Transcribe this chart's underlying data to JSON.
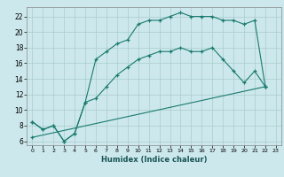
{
  "xlabel": "Humidex (Indice chaleur)",
  "bg_color": "#cce8ec",
  "grid_color": "#aacccc",
  "line_color": "#1a7a6e",
  "xlim": [
    -0.5,
    23.5
  ],
  "ylim": [
    5.5,
    23.2
  ],
  "xtick_labels": [
    "0",
    "1",
    "2",
    "3",
    "4",
    "5",
    "6",
    "7",
    "8",
    "9",
    "10",
    "11",
    "12",
    "13",
    "14",
    "15",
    "16",
    "17",
    "18",
    "19",
    "20",
    "21",
    "22",
    "23"
  ],
  "xticks": [
    0,
    1,
    2,
    3,
    4,
    5,
    6,
    7,
    8,
    9,
    10,
    11,
    12,
    13,
    14,
    15,
    16,
    17,
    18,
    19,
    20,
    21,
    22,
    23
  ],
  "yticks": [
    6,
    8,
    10,
    12,
    14,
    16,
    18,
    20,
    22
  ],
  "line1_x": [
    0,
    1,
    2,
    3,
    4,
    5,
    6,
    7,
    8,
    9,
    10,
    11,
    12,
    13,
    14,
    15,
    16,
    17,
    18,
    19,
    20,
    21,
    22
  ],
  "line1_y": [
    8.5,
    7.5,
    8.0,
    6.0,
    7.0,
    11.0,
    16.5,
    17.5,
    18.5,
    19.0,
    21.0,
    21.5,
    21.5,
    22.0,
    22.5,
    22.0,
    22.0,
    22.0,
    21.5,
    21.5,
    21.0,
    21.5,
    13.0
  ],
  "line2_x": [
    0,
    1,
    2,
    3,
    4,
    5,
    6,
    7,
    8,
    9,
    10,
    11,
    12,
    13,
    14,
    15,
    16,
    17,
    18,
    19,
    20,
    21,
    22
  ],
  "line2_y": [
    8.5,
    7.5,
    8.0,
    6.0,
    7.0,
    11.0,
    11.5,
    13.0,
    14.5,
    15.5,
    16.5,
    17.0,
    17.5,
    17.5,
    18.0,
    17.5,
    17.5,
    18.0,
    16.5,
    15.0,
    13.5,
    15.0,
    13.0
  ],
  "line3_x": [
    0,
    22
  ],
  "line3_y": [
    6.5,
    13.0
  ]
}
